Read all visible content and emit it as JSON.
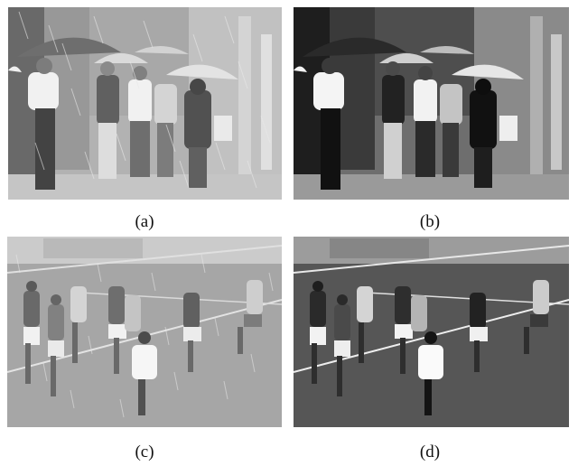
{
  "figure": {
    "panels": [
      {
        "id": "a",
        "caption": "(a)",
        "scene": "rainy-street",
        "variant": "rainy-input"
      },
      {
        "id": "b",
        "caption": "(b)",
        "scene": "rainy-street",
        "variant": "derained-output"
      },
      {
        "id": "c",
        "caption": "(c)",
        "scene": "soccer-rain",
        "variant": "rainy-input"
      },
      {
        "id": "d",
        "caption": "(d)",
        "scene": "soccer-rain",
        "variant": "derained-output"
      }
    ]
  },
  "colors": {
    "street_rainy_bg": "#a9a9a9",
    "street_derained_bg": "#6e6e6e",
    "field_rainy_bg": "#9a9a9a",
    "field_derained_bg": "#5a5a5a",
    "rain_streak": "#e6e6e6"
  }
}
